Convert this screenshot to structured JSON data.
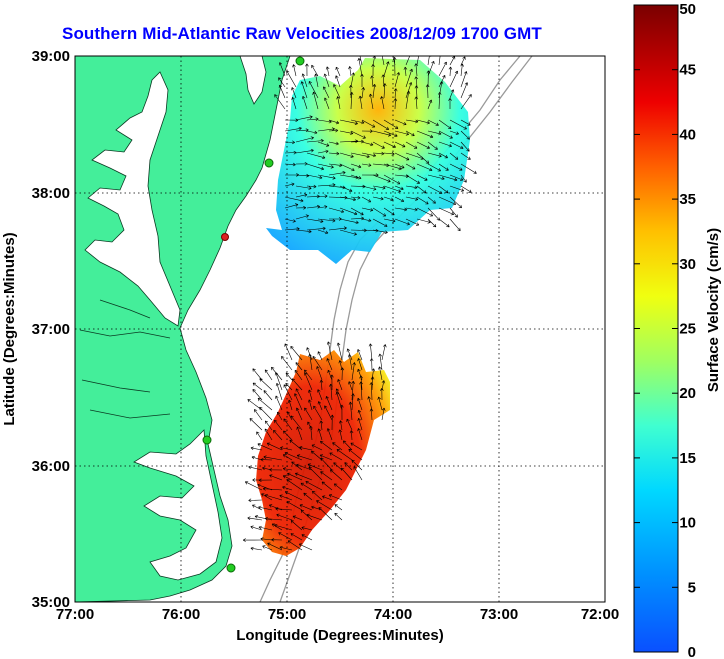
{
  "title": "Southern Mid-Atlantic Raw Velocities 2008/12/09 1700 GMT",
  "xlabel": "Longitude (Degrees:Minutes)",
  "ylabel": "Latitude (Degrees:Minutes)",
  "x_ticks": [
    "77:00",
    "76:00",
    "75:00",
    "74:00",
    "73:00",
    "72:00"
  ],
  "y_ticks": [
    "39:00",
    "38:00",
    "37:00",
    "36:00",
    "35:00"
  ],
  "colorbar": {
    "label": "Surface Velocity (cm/s)",
    "ticks": [
      "50",
      "45",
      "40",
      "35",
      "30",
      "25",
      "20",
      "15",
      "10",
      "5",
      "0"
    ],
    "range": [
      0,
      50
    ]
  },
  "colors": {
    "land": "#44ee9a",
    "water": "#ffffff",
    "title": "#0000ff",
    "station": "#22cc22",
    "station_alt": "#dd2222"
  }
}
